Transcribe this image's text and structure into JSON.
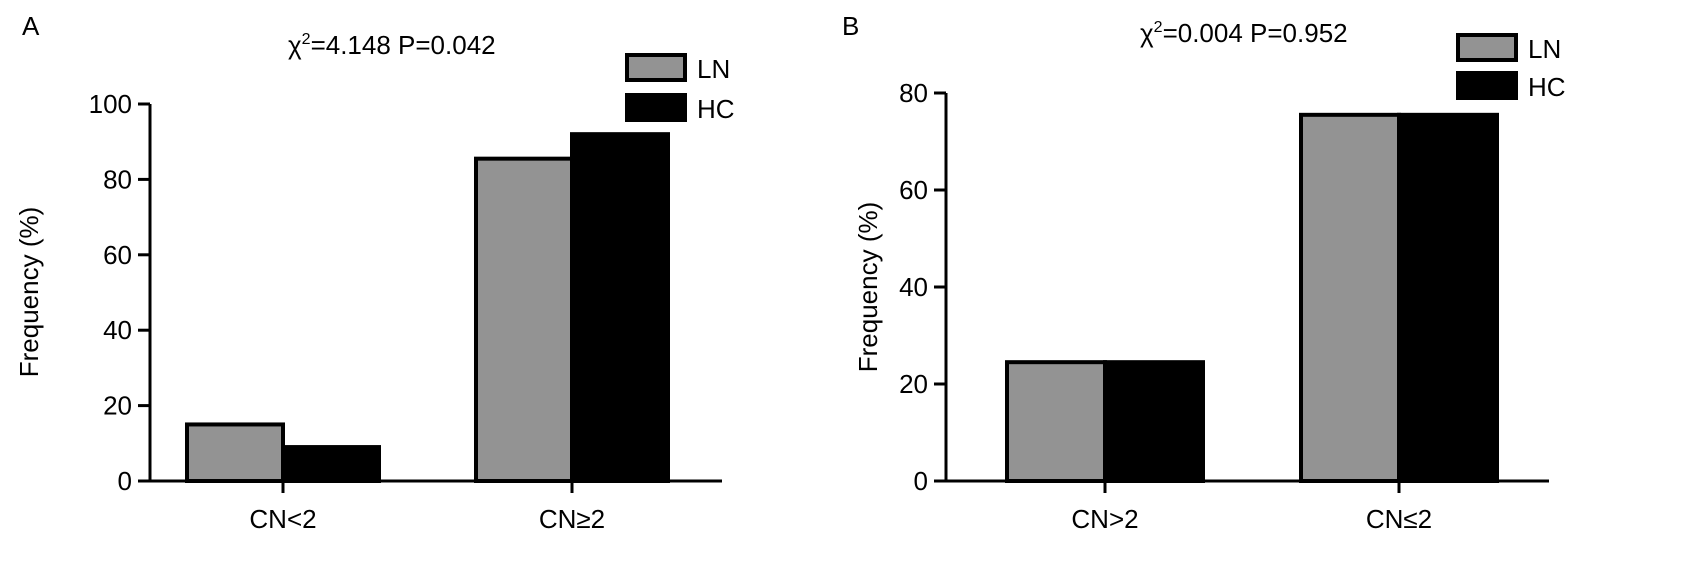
{
  "colors": {
    "LN": "#939393",
    "HC": "#000000",
    "stroke": "#000000"
  },
  "chart_data": [
    {
      "type": "bar",
      "panel_label": "A",
      "annotation": {
        "chi": "χ",
        "sup": "2",
        "rest": "=4.148 P=0.042"
      },
      "ylabel": "Frequency (%)",
      "xlabel": "",
      "ylim": [
        0,
        100
      ],
      "yticks": [
        0,
        20,
        40,
        60,
        80,
        100
      ],
      "categories": [
        "CN<2",
        "CN≥2"
      ],
      "series": [
        {
          "name": "LN",
          "values": [
            15,
            85.5
          ]
        },
        {
          "name": "HC",
          "values": [
            9,
            92
          ]
        }
      ],
      "legend": "top-right",
      "grid": false
    },
    {
      "type": "bar",
      "panel_label": "B",
      "annotation": {
        "chi": "χ",
        "sup": "2",
        "rest": "=0.004 P=0.952"
      },
      "ylabel": "Frequency (%)",
      "xlabel": "",
      "ylim": [
        0,
        80
      ],
      "yticks": [
        0,
        20,
        40,
        60,
        80
      ],
      "categories": [
        "CN>2",
        "CN≤2"
      ],
      "series": [
        {
          "name": "LN",
          "values": [
            24.5,
            75.5
          ]
        },
        {
          "name": "HC",
          "values": [
            24.5,
            75.5
          ]
        }
      ],
      "legend": "top-right",
      "grid": false
    }
  ]
}
